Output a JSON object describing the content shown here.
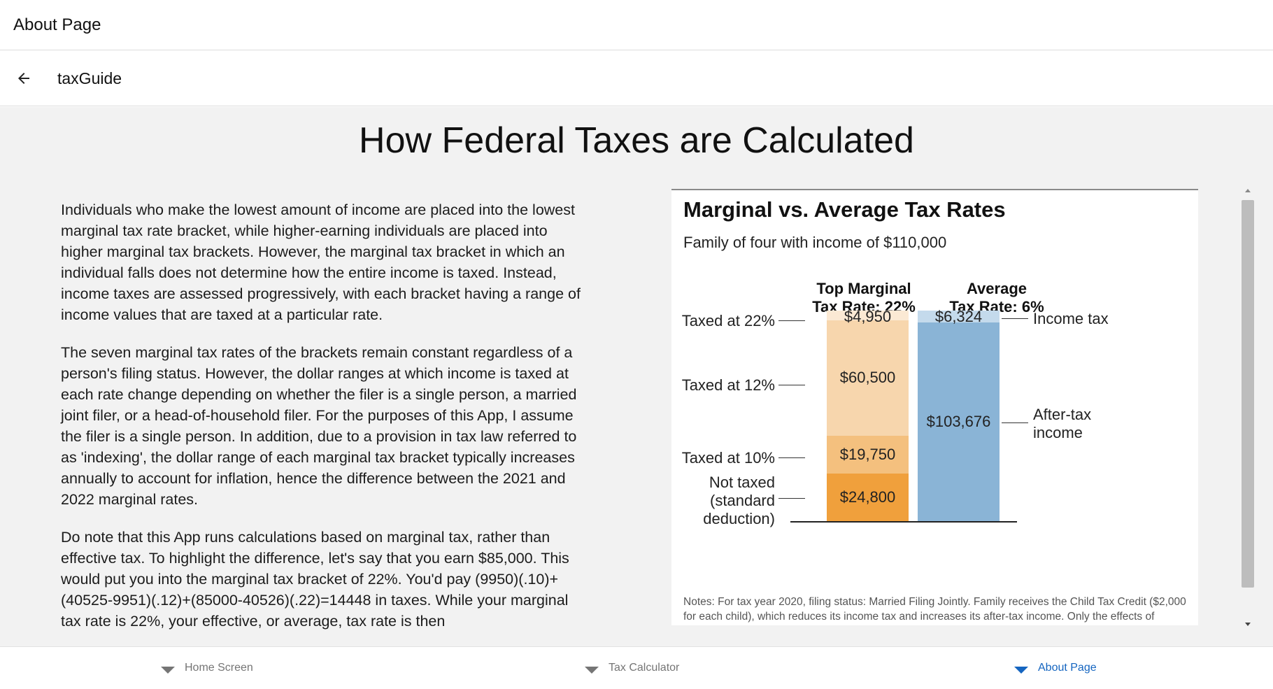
{
  "window": {
    "title": "About Page"
  },
  "appbar": {
    "title": "taxGuide",
    "back_icon": "arrow-left-icon"
  },
  "page": {
    "heading": "How Federal Taxes are Calculated"
  },
  "article": {
    "paragraphs": [
      "Individuals who make the lowest amount of income are placed into the lowest marginal tax rate bracket, while higher-earning individuals are placed into higher marginal tax brackets. However, the marginal tax bracket in which an individual falls does not determine how the entire income is taxed. Instead, income taxes are assessed progressively, with each bracket having a range of income values that are taxed at a particular rate.",
      "The seven marginal tax rates of the brackets remain constant regardless of a person's filing status. However, the dollar ranges at which income is taxed at each rate change depending on whether the filer is a single person, a married joint filer, or a head-of-household filer. For the purposes of this App, I assume the filer is a single person. In addition, due to a provision in tax law referred to as 'indexing', the dollar range of each marginal tax bracket typically increases annually to account for inflation, hence the difference between the 2021 and 2022 marginal rates.",
      "Do note that this App runs calculations based on marginal tax, rather than effective tax. To highlight the difference, let's say that you earn $85,000. This would put you into the marginal tax bracket of 22%. You'd pay (9950)(.10)+(40525-9951)(.12)+(85000-40526)(.22)=14448 in taxes. While your marginal tax rate is 22%, your effective, or average, tax rate is then"
    ]
  },
  "figure": {
    "title": "Marginal vs. Average Tax Rates",
    "subtitle": "Family of four with income of $110,000",
    "notes": "Notes: For tax year 2020, filing status: Married Filing Jointly. Family receives the Child Tax Credit ($2,000 for each child), which reduces its income tax and increases its after-tax income. Only the effects of income taxes are shown.",
    "chart_data": {
      "type": "bar",
      "stacked": true,
      "total": 110000,
      "columns": [
        {
          "heading_line1": "Top Marginal",
          "heading_line2": "Tax Rate: 22%",
          "segments": [
            {
              "label": "Not taxed (standard deduction)",
              "value": 24800,
              "value_text": "$24,800",
              "color": "#f0a03c"
            },
            {
              "label": "Taxed at 10%",
              "value": 19750,
              "value_text": "$19,750",
              "color": "#f4c07e"
            },
            {
              "label": "Taxed at 12%",
              "value": 60500,
              "value_text": "$60,500",
              "color": "#f7d6ad"
            },
            {
              "label": "Taxed at 22%",
              "value": 4950,
              "value_text": "$4,950",
              "color": "#fbe9d4"
            }
          ]
        },
        {
          "heading_line1": "Average",
          "heading_line2": "Tax Rate: 6%",
          "segments": [
            {
              "label": "After-tax income",
              "value": 103676,
              "value_text": "$103,676",
              "color": "#8ab4d6"
            },
            {
              "label": "Income tax",
              "value": 6324,
              "value_text": "$6,324",
              "color": "#c4daec"
            }
          ]
        }
      ],
      "left_labels": {
        "taxed22": "Taxed at 22%",
        "taxed12": "Taxed at 12%",
        "taxed10": "Taxed at 10%",
        "not_taxed_1": "Not taxed",
        "not_taxed_2": "(standard",
        "not_taxed_3": "deduction)"
      },
      "right_labels": {
        "income_tax": "Income tax",
        "after_tax_1": "After-tax",
        "after_tax_2": "income"
      }
    }
  },
  "bottom_nav": {
    "items": [
      {
        "label": "Home Screen",
        "active": false
      },
      {
        "label": "Tax Calculator",
        "active": false
      },
      {
        "label": "About Page",
        "active": true
      }
    ]
  },
  "colors": {
    "accent": "#1565c0",
    "inactive": "#757575"
  }
}
